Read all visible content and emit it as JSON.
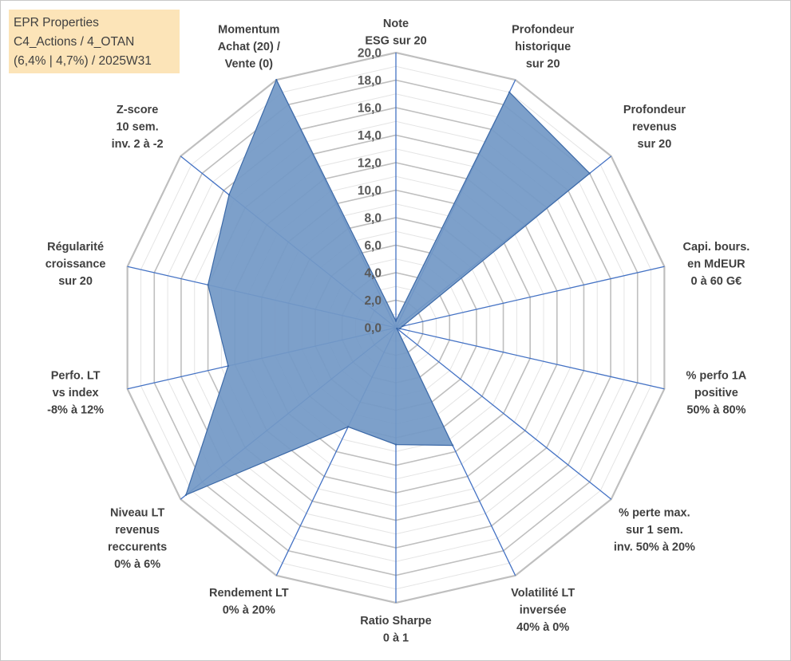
{
  "info_box": {
    "line1": "EPR Properties",
    "line2": "C4_Actions / 4_OTAN",
    "line3": "(6,4% | 4,7%) / 2025W31"
  },
  "chart_data": {
    "type": "radar",
    "title": "",
    "rmin": 0,
    "rmax": 20,
    "ticks": [
      "0,0",
      "2,0",
      "4,0",
      "6,0",
      "8,0",
      "10,0",
      "12,0",
      "14,0",
      "16,0",
      "18,0",
      "20,0"
    ],
    "minor_grid_step": 1,
    "colors": {
      "fill": "#7399c6",
      "stroke": "#3d6aa8",
      "axis": "#4472c4",
      "grid_major": "#bfbfbf",
      "grid_minor": "#e4e4e4"
    },
    "axes": [
      {
        "lines": [
          "Note",
          "ESG sur 20"
        ]
      },
      {
        "lines": [
          "Profondeur",
          "historique",
          "sur 20"
        ]
      },
      {
        "lines": [
          "Profondeur",
          "revenus",
          "sur 20"
        ]
      },
      {
        "lines": [
          "Capi. bours.",
          "en MdEUR",
          "0 à 60 G€"
        ]
      },
      {
        "lines": [
          "% perfo 1A",
          "positive",
          "50% à 80%"
        ]
      },
      {
        "lines": [
          "% perte max.",
          "sur 1 sem.",
          "inv. 50% à 20%"
        ]
      },
      {
        "lines": [
          "Volatilité LT",
          "inversée",
          "40% à 0%"
        ]
      },
      {
        "lines": [
          "Ratio Sharpe",
          "0 à 1"
        ]
      },
      {
        "lines": [
          "Rendement LT",
          "0% à 20%"
        ]
      },
      {
        "lines": [
          "Niveau LT",
          "revenus",
          "reccurents",
          "0% à 6%"
        ]
      },
      {
        "lines": [
          "Perfo. LT",
          "vs index",
          "-8% à 12%"
        ]
      },
      {
        "lines": [
          "Régularité",
          "croissance",
          "sur 20"
        ]
      },
      {
        "lines": [
          "Z-score",
          "10 sem.",
          "inv. 2 à -2"
        ]
      },
      {
        "lines": [
          "Momentum",
          "Achat (20) /",
          "Vente (0)"
        ]
      }
    ],
    "values": [
      0.5,
      19.0,
      18.0,
      0.5,
      0.3,
      0.1,
      9.5,
      8.5,
      8.0,
      19.5,
      12.5,
      14.0,
      15.5,
      20.0
    ]
  }
}
